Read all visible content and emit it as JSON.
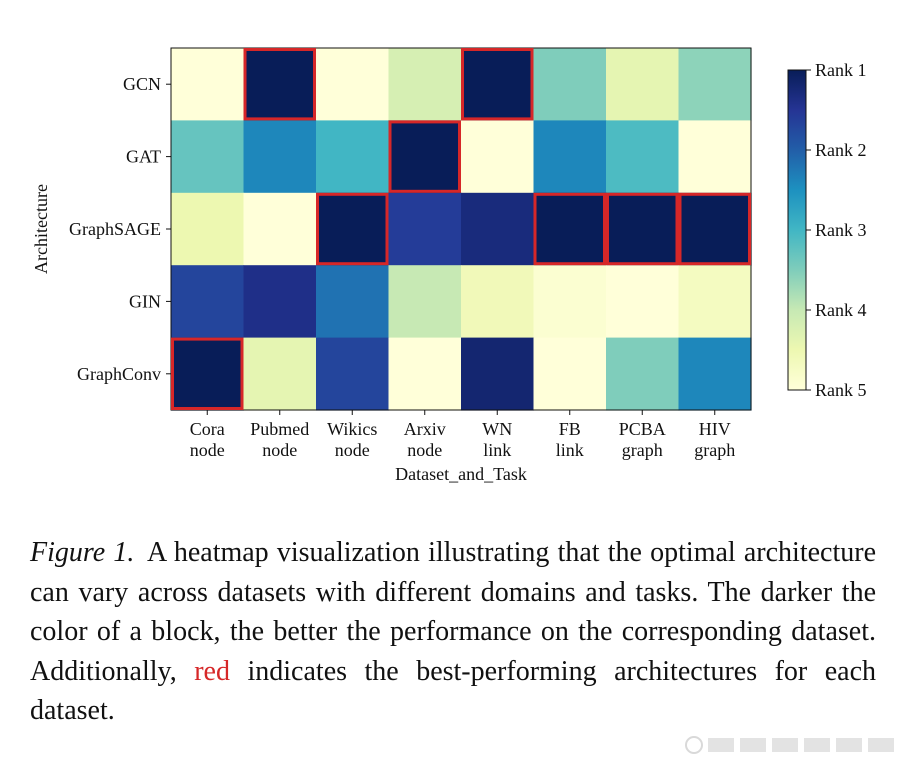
{
  "chart_data": {
    "type": "heatmap",
    "xlabel": "Dataset_and_Task",
    "ylabel": "Architecture",
    "columns": [
      {
        "name": "Cora",
        "task": "node"
      },
      {
        "name": "Pubmed",
        "task": "node"
      },
      {
        "name": "Wikics",
        "task": "node"
      },
      {
        "name": "Arxiv",
        "task": "node"
      },
      {
        "name": "WN",
        "task": "link"
      },
      {
        "name": "FB",
        "task": "link"
      },
      {
        "name": "PCBA",
        "task": "graph"
      },
      {
        "name": "HIV",
        "task": "graph"
      }
    ],
    "rows": [
      "GCN",
      "GAT",
      "GraphSAGE",
      "GIN",
      "GraphConv"
    ],
    "values": [
      [
        5.0,
        1.0,
        5.0,
        4.2,
        1.0,
        3.5,
        4.4,
        3.6
      ],
      [
        3.3,
        2.4,
        3.0,
        1.0,
        5.0,
        2.4,
        3.1,
        5.0
      ],
      [
        4.5,
        5.0,
        1.0,
        1.6,
        1.3,
        1.0,
        1.0,
        1.0
      ],
      [
        1.7,
        1.4,
        2.2,
        4.0,
        4.6,
        4.9,
        5.0,
        4.7
      ],
      [
        1.0,
        4.4,
        1.7,
        5.0,
        1.2,
        5.0,
        3.5,
        2.4
      ]
    ],
    "best": [
      [
        4,
        0
      ],
      [
        0,
        1
      ],
      [
        2,
        2
      ],
      [
        1,
        3
      ],
      [
        0,
        4
      ],
      [
        2,
        5
      ],
      [
        2,
        6
      ],
      [
        2,
        7
      ]
    ],
    "colorbar": {
      "ticks": [
        "Rank 1",
        "Rank 2",
        "Rank 3",
        "Rank 4",
        "Rank 5"
      ],
      "range": [
        1,
        5
      ],
      "colormap": "YlGnBu (dark = Rank 1)"
    },
    "colors": {
      "highlight": "#d62728",
      "scale": [
        "#ffffd9",
        "#edf8b1",
        "#c7e9b4",
        "#7fcdbb",
        "#41b6c4",
        "#1d91c0",
        "#225ea8",
        "#253494",
        "#081d58"
      ]
    }
  },
  "caption": {
    "label": "Figure 1.",
    "text_before": "A heatmap visualization illustrating that the optimal architecture can vary across datasets with different domains and tasks. The darker the color of a block, the better the performance on the corresponding dataset. Additionally,",
    "red_word": "red",
    "text_after": "indicates the best-performing architectures for each dataset."
  }
}
